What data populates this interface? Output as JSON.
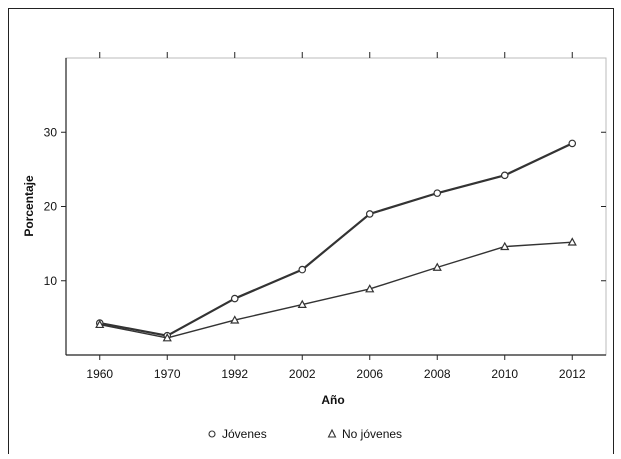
{
  "chart_data": {
    "type": "line",
    "title": "",
    "xlabel": "Año",
    "ylabel": "Porcentaje",
    "categories": [
      "1960",
      "1970",
      "1992",
      "2002",
      "2006",
      "2008",
      "2010",
      "2012"
    ],
    "ylim": [
      0,
      40
    ],
    "yticks": [
      10,
      20,
      30
    ],
    "series": [
      {
        "name": "Jóvenes",
        "marker": "circle",
        "color": "#333333",
        "values": [
          4.3,
          2.6,
          7.6,
          11.5,
          19.0,
          21.8,
          24.2,
          28.5
        ]
      },
      {
        "name": "No jóvenes",
        "marker": "triangle",
        "color": "#333333",
        "values": [
          4.1,
          2.3,
          4.7,
          6.8,
          8.9,
          11.8,
          14.6,
          15.2
        ]
      }
    ],
    "legend_position": "bottom-center",
    "grid": false
  }
}
